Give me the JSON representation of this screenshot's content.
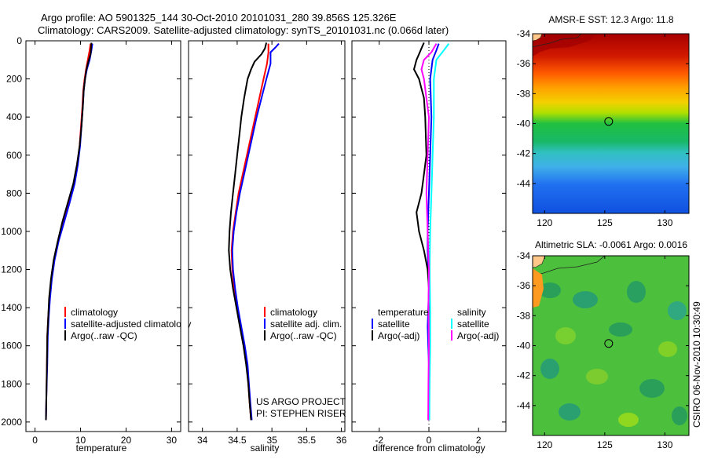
{
  "header": {
    "title_line1": "Argo profile: AO 5901325_144 30-Oct-2010 20101031_280 39.856S 125.326E",
    "title_line2": "Climatology: CARS2009. Satellite-adjusted climatology: synTS_20101031.nc (0.066d later)"
  },
  "side_caption": "CSIRO 06-Nov-2010 10:30:49",
  "colors": {
    "climatology": "#ff0000",
    "satellite": "#0000ff",
    "argo": "#000000",
    "diff_salinity_satellite": "#00ffff",
    "diff_salinity_argo": "#ff00ff",
    "land": "#ffc78a"
  },
  "chart_data": [
    {
      "type": "line",
      "panel": "temperature",
      "xlabel": "temperature",
      "ylabel": "",
      "xlim": [
        -2,
        32
      ],
      "ylim": [
        2050,
        0
      ],
      "xticks": [
        "0",
        "10",
        "20",
        "30"
      ],
      "yticks": [
        "0",
        "200",
        "400",
        "600",
        "800",
        "1000",
        "1200",
        "1400",
        "1600",
        "1800",
        "2000"
      ],
      "legend": [
        "climatology",
        "satellite-adjusted climatology",
        "Argo(..raw -QC)"
      ],
      "series": [
        {
          "name": "climatology",
          "color_key": "climatology",
          "points": [
            [
              12.2,
              15
            ],
            [
              12,
              50
            ],
            [
              11.6,
              100
            ],
            [
              11.2,
              150
            ],
            [
              10.9,
              200
            ],
            [
              10.6,
              260
            ],
            [
              10.4,
              350
            ],
            [
              10.1,
              450
            ],
            [
              9.8,
              550
            ],
            [
              9.3,
              650
            ],
            [
              8.6,
              750
            ],
            [
              7.5,
              850
            ],
            [
              6.3,
              950
            ],
            [
              5.1,
              1050
            ],
            [
              4.2,
              1150
            ],
            [
              3.6,
              1250
            ],
            [
              3.2,
              1350
            ],
            [
              2.9,
              1450
            ],
            [
              2.7,
              1550
            ],
            [
              2.6,
              1700
            ],
            [
              2.5,
              1850
            ],
            [
              2.4,
              1990
            ]
          ]
        },
        {
          "name": "satellite-adjusted climatology",
          "color_key": "satellite",
          "points": [
            [
              12.6,
              15
            ],
            [
              12.4,
              50
            ],
            [
              12,
              100
            ],
            [
              11.4,
              150
            ],
            [
              11,
              200
            ],
            [
              10.7,
              260
            ],
            [
              10.5,
              350
            ],
            [
              10.2,
              450
            ],
            [
              9.9,
              550
            ],
            [
              9.4,
              650
            ],
            [
              8.7,
              750
            ],
            [
              7.6,
              850
            ],
            [
              6.4,
              950
            ],
            [
              5.2,
              1050
            ],
            [
              4.3,
              1150
            ],
            [
              3.7,
              1250
            ],
            [
              3.3,
              1350
            ],
            [
              3,
              1450
            ],
            [
              2.8,
              1550
            ],
            [
              2.7,
              1700
            ],
            [
              2.5,
              1850
            ],
            [
              2.4,
              1990
            ]
          ]
        },
        {
          "name": "Argo(..raw -QC)",
          "color_key": "argo",
          "points": [
            [
              12.4,
              10
            ],
            [
              12.3,
              40
            ],
            [
              12.2,
              70
            ],
            [
              11.7,
              110
            ],
            [
              11.2,
              160
            ],
            [
              11,
              200
            ],
            [
              10.7,
              260
            ],
            [
              10.5,
              350
            ],
            [
              10.2,
              450
            ],
            [
              9.8,
              550
            ],
            [
              9.2,
              650
            ],
            [
              8.4,
              750
            ],
            [
              7.2,
              850
            ],
            [
              6,
              950
            ],
            [
              5,
              1050
            ],
            [
              4.1,
              1150
            ],
            [
              3.5,
              1250
            ],
            [
              3.1,
              1350
            ],
            [
              2.9,
              1450
            ],
            [
              2.7,
              1550
            ],
            [
              2.6,
              1700
            ],
            [
              2.5,
              1850
            ],
            [
              2.4,
              1990
            ]
          ]
        }
      ]
    },
    {
      "type": "line",
      "panel": "salinity",
      "xlabel": "salinity",
      "xlim": [
        33.8,
        36.05
      ],
      "ylim": [
        2050,
        0
      ],
      "xticks": [
        "34",
        "34.5",
        "35",
        "35.5",
        "36"
      ],
      "legend": [
        "climatology",
        "satellite adj. clim.",
        "Argo(..raw -QC)"
      ],
      "annotation_line1": "US ARGO PROJECT",
      "annotation_line2": "PI: STEPHEN RISER",
      "series": [
        {
          "name": "climatology",
          "color_key": "climatology",
          "points": [
            [
              34.95,
              15
            ],
            [
              34.95,
              60
            ],
            [
              34.93,
              120
            ],
            [
              34.88,
              200
            ],
            [
              34.82,
              300
            ],
            [
              34.76,
              400
            ],
            [
              34.7,
              500
            ],
            [
              34.64,
              600
            ],
            [
              34.58,
              700
            ],
            [
              34.52,
              800
            ],
            [
              34.48,
              900
            ],
            [
              34.44,
              1000
            ],
            [
              34.42,
              1100
            ],
            [
              34.43,
              1200
            ],
            [
              34.46,
              1300
            ],
            [
              34.5,
              1400
            ],
            [
              34.55,
              1500
            ],
            [
              34.6,
              1600
            ],
            [
              34.64,
              1700
            ],
            [
              34.66,
              1800
            ],
            [
              34.68,
              1900
            ],
            [
              34.7,
              1990
            ]
          ]
        },
        {
          "name": "satellite adj. clim.",
          "color_key": "satellite",
          "points": [
            [
              35.1,
              15
            ],
            [
              35.05,
              35
            ],
            [
              34.98,
              60
            ],
            [
              34.98,
              120
            ],
            [
              34.92,
              200
            ],
            [
              34.85,
              300
            ],
            [
              34.78,
              400
            ],
            [
              34.72,
              500
            ],
            [
              34.66,
              600
            ],
            [
              34.6,
              700
            ],
            [
              34.54,
              800
            ],
            [
              34.49,
              900
            ],
            [
              34.45,
              1000
            ],
            [
              34.43,
              1100
            ],
            [
              34.44,
              1200
            ],
            [
              34.47,
              1300
            ],
            [
              34.51,
              1400
            ],
            [
              34.56,
              1500
            ],
            [
              34.61,
              1600
            ],
            [
              34.65,
              1700
            ],
            [
              34.67,
              1800
            ],
            [
              34.69,
              1900
            ],
            [
              34.71,
              1990
            ]
          ]
        },
        {
          "name": "Argo(..raw -QC)",
          "color_key": "argo",
          "points": [
            [
              34.92,
              10
            ],
            [
              34.9,
              40
            ],
            [
              34.85,
              70
            ],
            [
              34.8,
              90
            ],
            [
              34.75,
              110
            ],
            [
              34.7,
              150
            ],
            [
              34.65,
              200
            ],
            [
              34.6,
              300
            ],
            [
              34.56,
              400
            ],
            [
              34.53,
              500
            ],
            [
              34.5,
              600
            ],
            [
              34.47,
              700
            ],
            [
              34.44,
              800
            ],
            [
              34.41,
              900
            ],
            [
              34.39,
              1000
            ],
            [
              34.38,
              1100
            ],
            [
              34.4,
              1200
            ],
            [
              34.44,
              1300
            ],
            [
              34.49,
              1400
            ],
            [
              34.54,
              1500
            ],
            [
              34.59,
              1600
            ],
            [
              34.63,
              1700
            ],
            [
              34.66,
              1800
            ],
            [
              34.68,
              1900
            ],
            [
              34.7,
              1990
            ]
          ]
        }
      ]
    },
    {
      "type": "line",
      "panel": "difference",
      "xlabel": "difference from climatology",
      "xlim": [
        -3.1,
        3.1
      ],
      "ylim": [
        2050,
        0
      ],
      "xticks": [
        "-2",
        "0",
        "2"
      ],
      "legend_left_title": "temperature",
      "legend_right_title": "salinity",
      "legend": [
        "satellite",
        "Argo(-adj)",
        "satellite",
        "Argo(-adj)"
      ],
      "series": [
        {
          "name": "temperature satellite",
          "color_key": "satellite",
          "points": [
            [
              0.4,
              15
            ],
            [
              0.3,
              50
            ],
            [
              0.15,
              100
            ],
            [
              0.05,
              200
            ],
            [
              0.1,
              400
            ],
            [
              0.05,
              600
            ],
            [
              0,
              800
            ],
            [
              -0.05,
              1000
            ],
            [
              -0.05,
              1100
            ],
            [
              0,
              1300
            ],
            [
              -0.05,
              1500
            ],
            [
              0,
              1700
            ],
            [
              0,
              1990
            ]
          ]
        },
        {
          "name": "temperature Argo(-adj)",
          "color_key": "argo",
          "points": [
            [
              -0.2,
              10
            ],
            [
              -0.3,
              40
            ],
            [
              -0.4,
              70
            ],
            [
              -0.5,
              100
            ],
            [
              -0.6,
              150
            ],
            [
              -0.4,
              200
            ],
            [
              -0.3,
              250
            ],
            [
              -0.2,
              300
            ],
            [
              -0.15,
              400
            ],
            [
              -0.1,
              600
            ],
            [
              -0.2,
              700
            ],
            [
              -0.3,
              800
            ],
            [
              -0.5,
              900
            ],
            [
              -0.4,
              1000
            ],
            [
              -0.2,
              1100
            ],
            [
              -0.05,
              1200
            ],
            [
              0,
              1300
            ],
            [
              0,
              1500
            ],
            [
              0,
              1700
            ],
            [
              -0.02,
              1990
            ]
          ]
        },
        {
          "name": "salinity satellite",
          "color_key": "diff_salinity_satellite",
          "points": [
            [
              0.8,
              15
            ],
            [
              0.6,
              50
            ],
            [
              0.3,
              100
            ],
            [
              0.2,
              200
            ],
            [
              0.2,
              400
            ],
            [
              0.15,
              600
            ],
            [
              0.1,
              800
            ],
            [
              0.05,
              1000
            ],
            [
              0.03,
              1200
            ],
            [
              0.05,
              1400
            ],
            [
              0.05,
              1600
            ],
            [
              0.03,
              1800
            ],
            [
              0.02,
              1990
            ]
          ]
        },
        {
          "name": "salinity Argo(-adj)",
          "color_key": "diff_salinity_argo",
          "points": [
            [
              0.3,
              15
            ],
            [
              0.1,
              60
            ],
            [
              -0.2,
              100
            ],
            [
              -0.3,
              150
            ],
            [
              -0.2,
              200
            ],
            [
              -0.1,
              300
            ],
            [
              0,
              400
            ],
            [
              -0.05,
              600
            ],
            [
              -0.1,
              800
            ],
            [
              -0.05,
              1000
            ],
            [
              0,
              1200
            ],
            [
              -0.02,
              1400
            ],
            [
              0,
              1600
            ],
            [
              -0.02,
              1800
            ],
            [
              -0.03,
              1990
            ]
          ]
        }
      ]
    },
    {
      "type": "heatmap",
      "panel": "sst_map",
      "title": "AMSR-E SST: 12.3 Argo: 11.8",
      "xlim": [
        119,
        132
      ],
      "ylim": [
        -46,
        -34
      ],
      "xticks": [
        "120",
        "125",
        "130"
      ],
      "yticks": [
        "-34",
        "-36",
        "-38",
        "-40",
        "-42",
        "-44"
      ],
      "marker": {
        "lon": 125.326,
        "lat": -39.856
      }
    },
    {
      "type": "heatmap",
      "panel": "sla_map",
      "title": "Altimetric SLA: -0.0061 Argo: 0.0016",
      "xlim": [
        119,
        132
      ],
      "ylim": [
        -46,
        -34
      ],
      "xticks": [
        "120",
        "125",
        "130"
      ],
      "yticks": [
        "-34",
        "-36",
        "-38",
        "-40",
        "-42",
        "-44"
      ],
      "marker": {
        "lon": 125.326,
        "lat": -39.856
      }
    }
  ]
}
